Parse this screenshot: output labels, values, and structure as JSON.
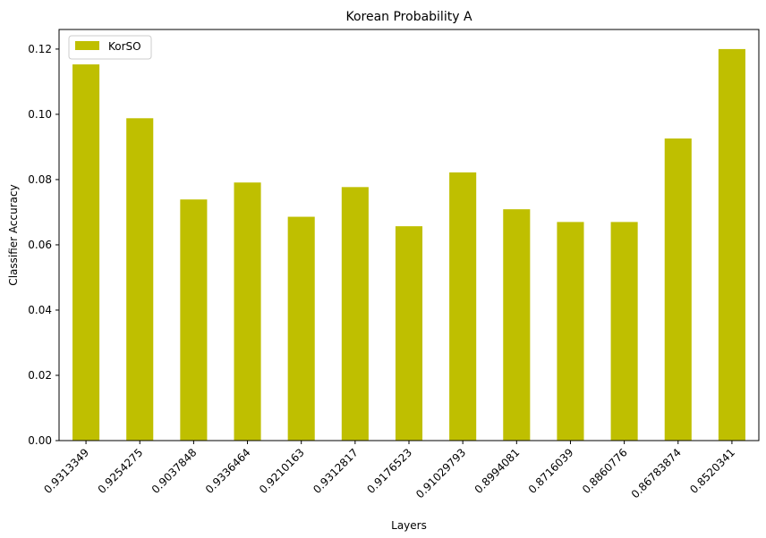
{
  "chart_data": {
    "type": "bar",
    "title": "Korean Probability A",
    "xlabel": "Layers",
    "ylabel": "Classifier Accuracy",
    "categories": [
      "0.9313349",
      "0.9254275",
      "0.9037848",
      "0.9336464",
      "0.9210163",
      "0.9312817",
      "0.9176523",
      "0.91029793",
      "0.8994081",
      "0.8716039",
      "0.8860776",
      "0.86783874",
      "0.8520341"
    ],
    "series": [
      {
        "name": "KorSO",
        "color": "#bfbf00",
        "values": [
          0.1153,
          0.0988,
          0.0739,
          0.0791,
          0.0686,
          0.0777,
          0.0657,
          0.0822,
          0.0709,
          0.067,
          0.067,
          0.0926,
          0.12
        ]
      }
    ],
    "ylim": [
      0,
      0.126
    ],
    "yticks": [
      0.0,
      0.02,
      0.04,
      0.06,
      0.08,
      0.1,
      0.12
    ],
    "ytick_labels": [
      "0.00",
      "0.02",
      "0.04",
      "0.06",
      "0.08",
      "0.10",
      "0.12"
    ],
    "grid": false,
    "legend": "top-left"
  }
}
